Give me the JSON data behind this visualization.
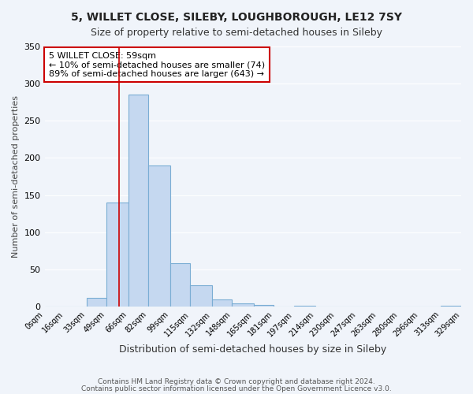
{
  "title_line1": "5, WILLET CLOSE, SILEBY, LOUGHBOROUGH, LE12 7SY",
  "title_line2": "Size of property relative to semi-detached houses in Sileby",
  "xlabel": "Distribution of semi-detached houses by size in Sileby",
  "ylabel": "Number of semi-detached properties",
  "bin_edges": [
    0,
    16,
    33,
    49,
    66,
    82,
    99,
    115,
    132,
    148,
    165,
    181,
    197,
    214,
    230,
    247,
    263,
    280,
    296,
    313,
    329
  ],
  "bin_labels": [
    "0sqm",
    "16sqm",
    "33sqm",
    "49sqm",
    "66sqm",
    "82sqm",
    "99sqm",
    "115sqm",
    "132sqm",
    "148sqm",
    "165sqm",
    "181sqm",
    "197sqm",
    "214sqm",
    "230sqm",
    "247sqm",
    "263sqm",
    "280sqm",
    "296sqm",
    "313sqm",
    "329sqm"
  ],
  "counts": [
    0,
    0,
    12,
    140,
    285,
    190,
    58,
    29,
    9,
    4,
    2,
    0,
    1,
    0,
    0,
    0,
    0,
    0,
    0,
    1
  ],
  "bar_fill": "#c5d8f0",
  "bar_edge": "#7aadd4",
  "property_sqm": 59,
  "vline_color": "#cc0000",
  "annotation_title": "5 WILLET CLOSE: 59sqm",
  "annotation_line1": "← 10% of semi-detached houses are smaller (74)",
  "annotation_line2": "89% of semi-detached houses are larger (643) →",
  "annotation_box_color": "#cc0000",
  "annotation_bg": "#ffffff",
  "ylim": [
    0,
    350
  ],
  "yticks": [
    0,
    50,
    100,
    150,
    200,
    250,
    300,
    350
  ],
  "footer_line1": "Contains HM Land Registry data © Crown copyright and database right 2024.",
  "footer_line2": "Contains public sector information licensed under the Open Government Licence v3.0.",
  "bg_color": "#f0f4fa",
  "grid_color": "#ffffff"
}
